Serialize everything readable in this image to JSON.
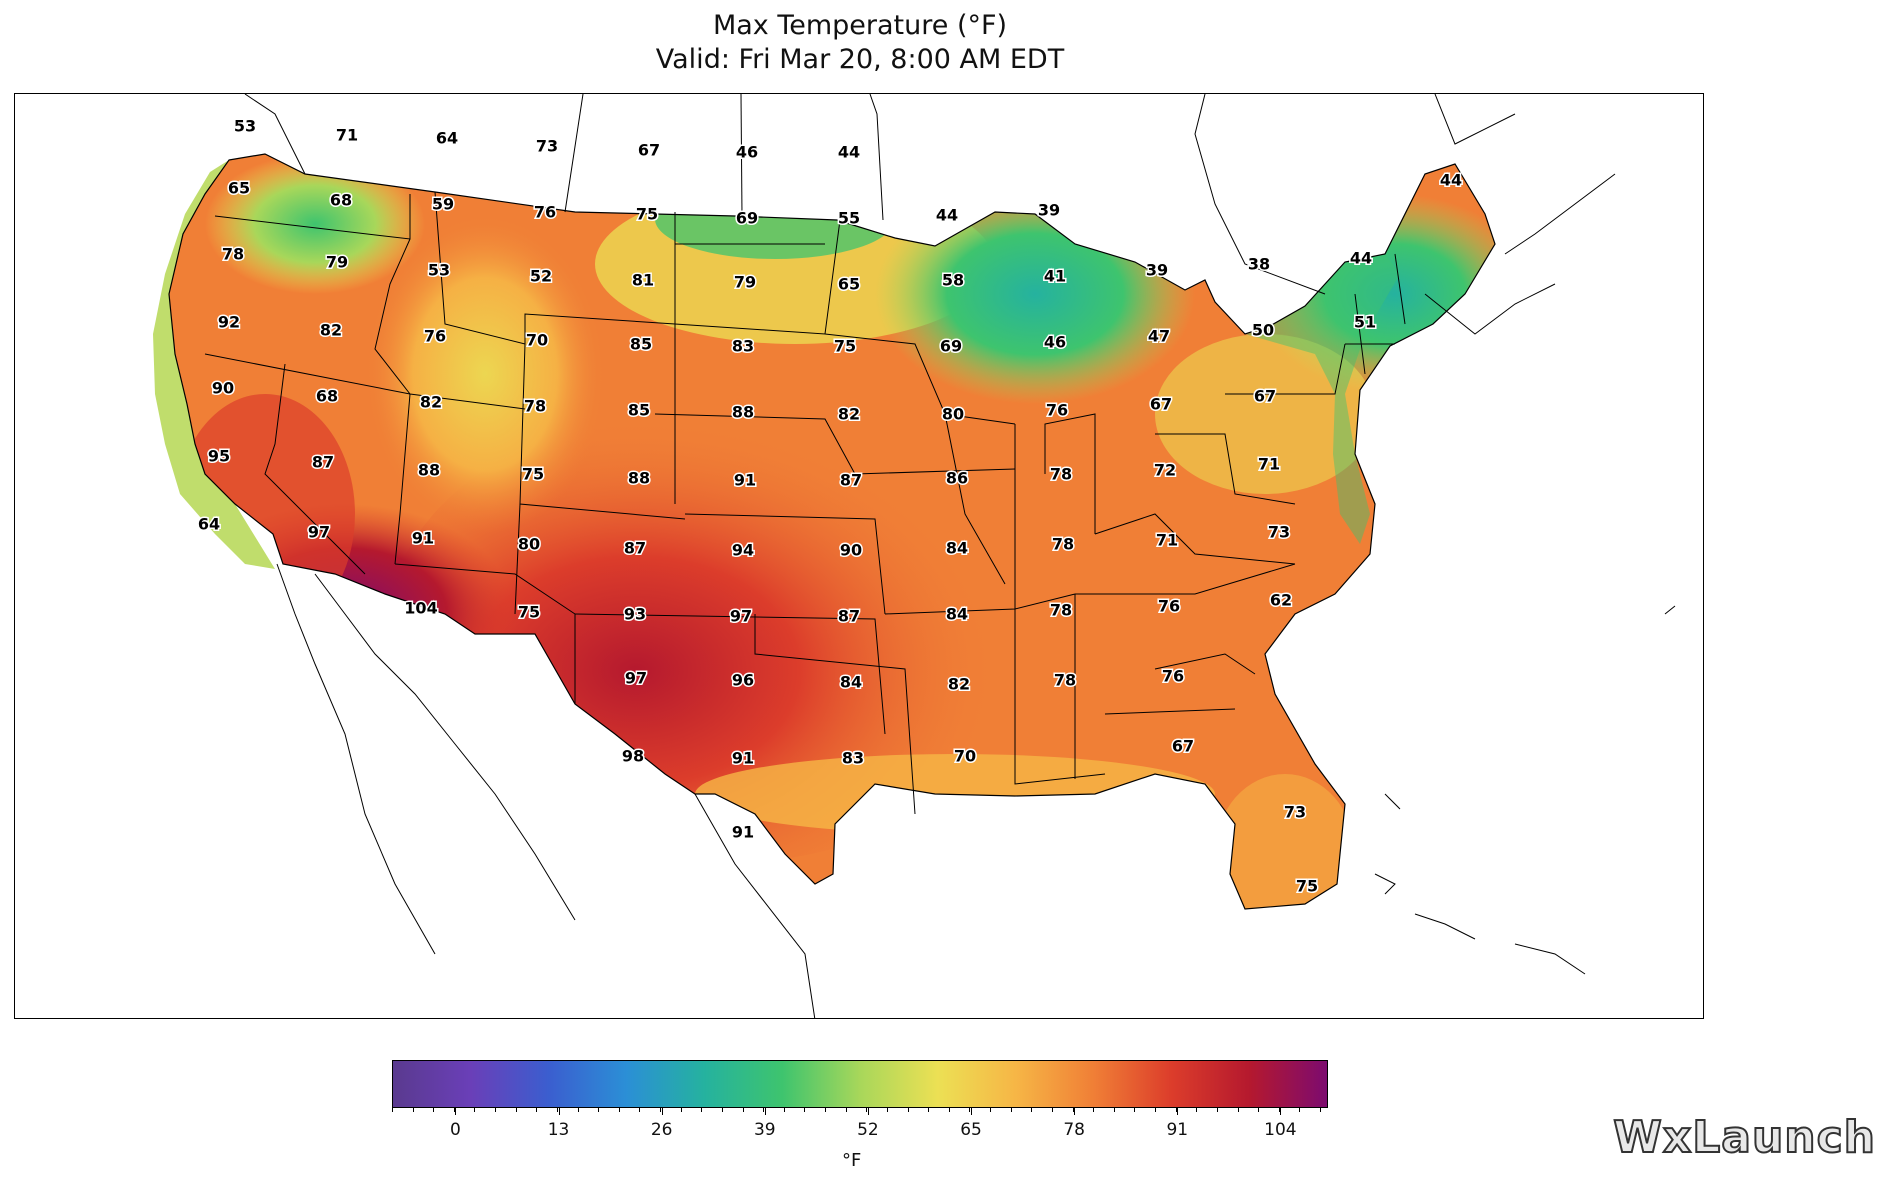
{
  "title": {
    "line1": "Max Temperature (°F)",
    "line2": "Valid: Fri Mar 20, 8:00 AM EDT"
  },
  "colorbar": {
    "unit": "°F",
    "min": -8,
    "max": 110,
    "ticks": [
      0,
      13,
      26,
      39,
      52,
      65,
      78,
      91,
      104
    ],
    "tick_labels": [
      "0",
      "13",
      "26",
      "39",
      "52",
      "65",
      "78",
      "91",
      "104"
    ],
    "colors": [
      "#5a3a8f",
      "#6a3fb8",
      "#3b5ecf",
      "#2b8fd6",
      "#25b29f",
      "#3ec46e",
      "#a8d75a",
      "#ece054",
      "#f6b646",
      "#f07f36",
      "#dc3d2b",
      "#b5192e",
      "#7d0b6f"
    ]
  },
  "map": {
    "temperature_labels": [
      {
        "text": "53"
      },
      {
        "text": "71"
      },
      {
        "text": "64"
      },
      {
        "text": "73"
      },
      {
        "text": "67"
      },
      {
        "text": "46"
      },
      {
        "text": "44"
      },
      {
        "text": "65"
      },
      {
        "text": "68"
      },
      {
        "text": "59"
      },
      {
        "text": "76"
      },
      {
        "text": "75"
      },
      {
        "text": "69"
      },
      {
        "text": "55"
      },
      {
        "text": "44"
      },
      {
        "text": "39"
      },
      {
        "text": "44"
      },
      {
        "text": "78"
      },
      {
        "text": "79"
      },
      {
        "text": "53"
      },
      {
        "text": "52"
      },
      {
        "text": "81"
      },
      {
        "text": "79"
      },
      {
        "text": "65"
      },
      {
        "text": "58"
      },
      {
        "text": "41"
      },
      {
        "text": "39"
      },
      {
        "text": "38"
      },
      {
        "text": "44"
      },
      {
        "text": "92"
      },
      {
        "text": "82"
      },
      {
        "text": "76"
      },
      {
        "text": "70"
      },
      {
        "text": "85"
      },
      {
        "text": "83"
      },
      {
        "text": "75"
      },
      {
        "text": "69"
      },
      {
        "text": "46"
      },
      {
        "text": "47"
      },
      {
        "text": "50"
      },
      {
        "text": "51"
      },
      {
        "text": "90"
      },
      {
        "text": "68"
      },
      {
        "text": "82"
      },
      {
        "text": "78"
      },
      {
        "text": "85"
      },
      {
        "text": "88"
      },
      {
        "text": "82"
      },
      {
        "text": "80"
      },
      {
        "text": "76"
      },
      {
        "text": "67"
      },
      {
        "text": "67"
      },
      {
        "text": "95"
      },
      {
        "text": "87"
      },
      {
        "text": "88"
      },
      {
        "text": "75"
      },
      {
        "text": "88"
      },
      {
        "text": "91"
      },
      {
        "text": "87"
      },
      {
        "text": "86"
      },
      {
        "text": "78"
      },
      {
        "text": "72"
      },
      {
        "text": "71"
      },
      {
        "text": "64"
      },
      {
        "text": "97"
      },
      {
        "text": "91"
      },
      {
        "text": "80"
      },
      {
        "text": "87"
      },
      {
        "text": "94"
      },
      {
        "text": "90"
      },
      {
        "text": "84"
      },
      {
        "text": "78"
      },
      {
        "text": "71"
      },
      {
        "text": "73"
      },
      {
        "text": "104"
      },
      {
        "text": "75"
      },
      {
        "text": "93"
      },
      {
        "text": "97"
      },
      {
        "text": "87"
      },
      {
        "text": "84"
      },
      {
        "text": "78"
      },
      {
        "text": "76"
      },
      {
        "text": "62"
      },
      {
        "text": "97"
      },
      {
        "text": "96"
      },
      {
        "text": "84"
      },
      {
        "text": "82"
      },
      {
        "text": "78"
      },
      {
        "text": "76"
      },
      {
        "text": "98"
      },
      {
        "text": "91"
      },
      {
        "text": "83"
      },
      {
        "text": "70"
      },
      {
        "text": "67"
      },
      {
        "text": "73"
      },
      {
        "text": "91"
      },
      {
        "text": "75"
      }
    ]
  },
  "watermark": "WxLaunch"
}
